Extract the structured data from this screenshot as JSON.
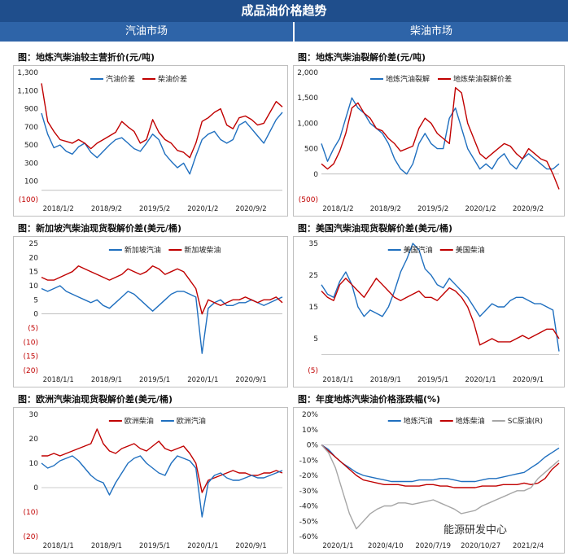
{
  "header": {
    "title": "成品油价格趋势",
    "left_section": "汽油市场",
    "right_section": "柴油市场"
  },
  "watermark": "能源研发中心",
  "chart_data": [
    {
      "id": "c1",
      "type": "line",
      "title": "图：地炼汽柴油较主营折价(元/吨)",
      "ylim": [
        -100,
        1300
      ],
      "yticks": [
        -100,
        100,
        300,
        500,
        700,
        900,
        1100,
        1300
      ],
      "ytick_labels": [
        "(100)",
        "100",
        "300",
        "500",
        "700",
        "900",
        "1,100",
        "1,300"
      ],
      "xticks": [
        "2018/1/2",
        "2018/9/2",
        "2019/5/2",
        "2020/1/2",
        "2020/9/2"
      ],
      "legend_position": "top-left",
      "series": [
        {
          "name": "汽油价差",
          "color": "#1f6fbf",
          "values": [
            850,
            620,
            470,
            500,
            430,
            400,
            480,
            520,
            420,
            360,
            430,
            500,
            560,
            580,
            520,
            460,
            430,
            520,
            620,
            560,
            400,
            320,
            250,
            300,
            180,
            380,
            560,
            620,
            650,
            560,
            520,
            560,
            720,
            760,
            680,
            600,
            520,
            650,
            780,
            860
          ]
        },
        {
          "name": "柴油价差",
          "color": "#c00000",
          "values": [
            1180,
            760,
            650,
            560,
            540,
            520,
            560,
            520,
            460,
            520,
            560,
            600,
            640,
            760,
            700,
            650,
            520,
            560,
            780,
            640,
            560,
            520,
            440,
            420,
            360,
            520,
            760,
            800,
            860,
            900,
            720,
            680,
            800,
            820,
            780,
            720,
            740,
            860,
            980,
            920
          ]
        }
      ]
    },
    {
      "id": "c2",
      "type": "line",
      "title": "图：地炼汽柴油裂解价差(元/吨)",
      "ylim": [
        -500,
        2000
      ],
      "yticks": [
        -500,
        0,
        500,
        1000,
        1500,
        2000
      ],
      "ytick_labels": [
        "(500)",
        "0",
        "500",
        "1,000",
        "1,500",
        "2,000"
      ],
      "xticks": [
        "2018/1/2",
        "2018/9/2",
        "2019/5/2",
        "2020/1/2",
        "2020/9/2"
      ],
      "legend_position": "top-left",
      "series": [
        {
          "name": "地炼汽油裂解",
          "color": "#1f6fbf",
          "values": [
            600,
            250,
            500,
            700,
            1100,
            1500,
            1300,
            1200,
            1000,
            900,
            800,
            600,
            300,
            100,
            0,
            200,
            600,
            800,
            600,
            500,
            500,
            1100,
            1300,
            900,
            500,
            300,
            100,
            200,
            100,
            300,
            400,
            200,
            100,
            300,
            400,
            300,
            200,
            100,
            100,
            200
          ]
        },
        {
          "name": "地炼柴油裂解价差",
          "color": "#c00000",
          "values": [
            200,
            100,
            200,
            450,
            800,
            1300,
            1400,
            1200,
            1100,
            900,
            850,
            700,
            600,
            450,
            500,
            550,
            900,
            1100,
            1000,
            800,
            700,
            600,
            1700,
            1600,
            1000,
            700,
            400,
            300,
            400,
            500,
            600,
            550,
            400,
            300,
            500,
            400,
            300,
            250,
            0,
            -300
          ]
        }
      ]
    },
    {
      "id": "c3",
      "type": "line",
      "title": "图：新加坡汽柴油现货裂解价差(美元/桶)",
      "ylim": [
        -20,
        25
      ],
      "yticks": [
        -20,
        -15,
        -10,
        -5,
        0,
        5,
        10,
        15,
        20,
        25
      ],
      "ytick_labels": [
        "(20)",
        "(15)",
        "(10)",
        "(5)",
        "0",
        "5",
        "10",
        "15",
        "20",
        "25"
      ],
      "xticks": [
        "2018/1/1",
        "2018/9/1",
        "2019/5/1",
        "2020/1/1",
        "2020/9/1"
      ],
      "legend_position": "top-center",
      "series": [
        {
          "name": "新加坡汽油",
          "color": "#1f6fbf",
          "values": [
            9,
            8,
            9,
            10,
            8,
            7,
            6,
            5,
            4,
            5,
            3,
            2,
            4,
            6,
            8,
            7,
            5,
            3,
            1,
            3,
            5,
            7,
            8,
            8,
            7,
            6,
            -14,
            2,
            4,
            5,
            3,
            3,
            4,
            4,
            5,
            4,
            3,
            4,
            5,
            6
          ]
        },
        {
          "name": "新加坡柴油",
          "color": "#c00000",
          "values": [
            13,
            12,
            12,
            13,
            14,
            15,
            17,
            16,
            15,
            14,
            13,
            12,
            13,
            14,
            16,
            15,
            14,
            15,
            17,
            16,
            14,
            15,
            16,
            15,
            12,
            9,
            0,
            5,
            4,
            3,
            4,
            5,
            5,
            6,
            5,
            4,
            5,
            5,
            6,
            4
          ]
        }
      ]
    },
    {
      "id": "c4",
      "type": "line",
      "title": "图：美国汽柴油现货裂解价差(美元/桶)",
      "ylim": [
        -5,
        35
      ],
      "yticks": [
        -5,
        5,
        15,
        25,
        35
      ],
      "ytick_labels": [
        "(5)",
        "5",
        "15",
        "25",
        "35"
      ],
      "xticks": [
        "2018/1/1",
        "2018/9/1",
        "2019/5/1",
        "2020/1/1",
        "2020/9/1"
      ],
      "legend_position": "top-center",
      "series": [
        {
          "name": "美国汽油",
          "color": "#1f6fbf",
          "values": [
            22,
            19,
            18,
            23,
            26,
            22,
            15,
            12,
            14,
            13,
            12,
            15,
            20,
            26,
            30,
            35,
            33,
            27,
            25,
            22,
            21,
            24,
            22,
            20,
            18,
            15,
            12,
            14,
            16,
            15,
            15,
            17,
            18,
            18,
            17,
            16,
            16,
            15,
            14,
            1
          ]
        },
        {
          "name": "美国柴油",
          "color": "#c00000",
          "values": [
            20,
            18,
            17,
            22,
            24,
            22,
            20,
            18,
            21,
            24,
            22,
            20,
            18,
            17,
            18,
            19,
            20,
            18,
            18,
            17,
            19,
            21,
            20,
            18,
            15,
            10,
            3,
            4,
            5,
            4,
            4,
            4,
            5,
            6,
            5,
            6,
            7,
            8,
            8,
            5
          ]
        }
      ]
    },
    {
      "id": "c5",
      "type": "line",
      "title": "图：欧洲汽柴油现货裂解价差(美元/桶)",
      "ylim": [
        -20,
        30
      ],
      "yticks": [
        -20,
        -10,
        0,
        10,
        20,
        30
      ],
      "ytick_labels": [
        "(20)",
        "(10)",
        "0",
        "10",
        "20",
        "30"
      ],
      "xticks": [
        "2018/1/1",
        "2018/9/1",
        "2019/5/1",
        "2020/1/1",
        "2020/9/1"
      ],
      "legend_position": "top-center",
      "series": [
        {
          "name": "欧洲柴油",
          "color": "#c00000",
          "values": [
            13,
            13,
            14,
            13,
            14,
            15,
            16,
            17,
            18,
            24,
            18,
            15,
            14,
            16,
            17,
            18,
            16,
            15,
            17,
            19,
            16,
            15,
            16,
            17,
            14,
            10,
            -2,
            3,
            4,
            5,
            6,
            7,
            6,
            6,
            5,
            5,
            6,
            6,
            7,
            6
          ]
        },
        {
          "name": "欧洲汽油",
          "color": "#1f6fbf",
          "values": [
            10,
            8,
            9,
            11,
            12,
            13,
            11,
            8,
            5,
            3,
            2,
            -3,
            2,
            6,
            10,
            12,
            13,
            10,
            8,
            6,
            5,
            10,
            13,
            12,
            11,
            8,
            -12,
            2,
            5,
            6,
            4,
            3,
            3,
            4,
            5,
            4,
            4,
            5,
            6,
            7
          ]
        }
      ]
    },
    {
      "id": "c6",
      "type": "line",
      "title": "图：年度地炼汽柴油价格涨跌幅(%)",
      "ylim": [
        -60,
        20
      ],
      "yticks": [
        -60,
        -50,
        -40,
        -30,
        -20,
        -10,
        0,
        10,
        20
      ],
      "ytick_labels": [
        "-60%",
        "-50%",
        "-40%",
        "-30%",
        "-20%",
        "-10%",
        "0%",
        "10%",
        "20%"
      ],
      "xticks": [
        "2020/1/1",
        "2020/4/10",
        "2020/7/19",
        "2020/10/27",
        "2021/2/4"
      ],
      "legend_position": "top-center",
      "series": [
        {
          "name": "地炼汽油",
          "color": "#1f6fbf",
          "values": [
            0,
            -3,
            -8,
            -12,
            -15,
            -18,
            -20,
            -21,
            -22,
            -23,
            -24,
            -24,
            -24,
            -24,
            -23,
            -23,
            -23,
            -22,
            -22,
            -23,
            -24,
            -24,
            -24,
            -23,
            -22,
            -22,
            -21,
            -20,
            -19,
            -18,
            -15,
            -12,
            -8,
            -5,
            -2
          ]
        },
        {
          "name": "地炼柴油",
          "color": "#c00000",
          "values": [
            0,
            -4,
            -8,
            -12,
            -16,
            -20,
            -23,
            -24,
            -25,
            -26,
            -26,
            -26,
            -27,
            -27,
            -27,
            -26,
            -26,
            -27,
            -27,
            -28,
            -28,
            -28,
            -28,
            -27,
            -27,
            -27,
            -26,
            -26,
            -26,
            -25,
            -26,
            -25,
            -22,
            -16,
            -12
          ]
        },
        {
          "name": "SC原油(R)",
          "color": "#a6a6a6",
          "values": [
            0,
            -5,
            -15,
            -30,
            -45,
            -55,
            -50,
            -45,
            -42,
            -40,
            -40,
            -38,
            -38,
            -39,
            -38,
            -37,
            -36,
            -38,
            -40,
            -42,
            -45,
            -44,
            -43,
            -40,
            -38,
            -36,
            -34,
            -32,
            -30,
            -30,
            -28,
            -22,
            -18,
            -14,
            -10
          ]
        }
      ]
    }
  ]
}
